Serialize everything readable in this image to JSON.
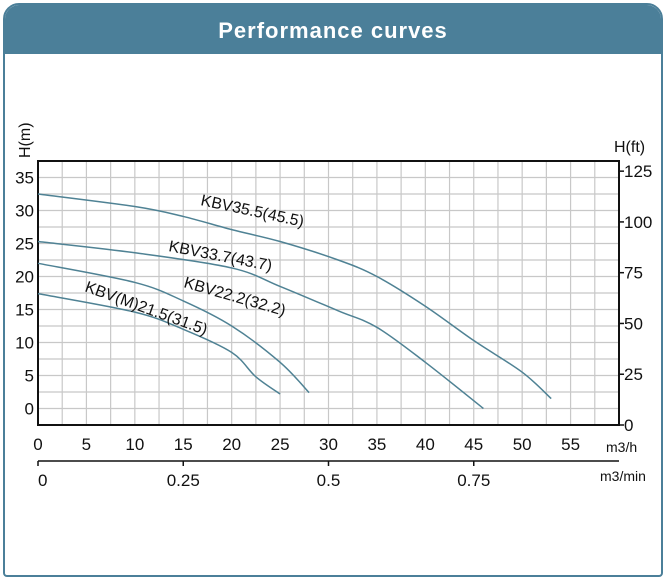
{
  "header": {
    "title": "Performance curves"
  },
  "colors": {
    "header": "#4b7f99",
    "curve": "#4f8294",
    "grid": "#c8c8c8"
  },
  "chart_data": {
    "type": "line",
    "title": "Performance curves",
    "ylabel": "H(m)",
    "ylabel_right": "H(ft)",
    "xlabel": "m3/h",
    "xlabel_secondary": "m3/min",
    "xlim": [
      0,
      60
    ],
    "ylim": [
      -2.5,
      37.5
    ],
    "ylim_right": [
      0,
      130
    ],
    "grid": true,
    "x_ticks": [
      0,
      5,
      10,
      15,
      20,
      25,
      30,
      35,
      40,
      45,
      50,
      55
    ],
    "y_ticks": [
      0,
      5,
      10,
      15,
      20,
      25,
      30,
      35
    ],
    "y_right_ticks": [
      0,
      25,
      50,
      75,
      100,
      125
    ],
    "x_secondary_ticks": [
      {
        "label": "0",
        "q": 0
      },
      {
        "label": "0.25",
        "q": 15
      },
      {
        "label": "0.5",
        "q": 30
      },
      {
        "label": "0.75",
        "q": 45
      }
    ],
    "series": [
      {
        "name": "KBV35.5(45.5)",
        "x": [
          0,
          10,
          15,
          20,
          25,
          31,
          35,
          40,
          45,
          50,
          53
        ],
        "y": [
          32.5,
          30.6,
          29.1,
          27.1,
          25.3,
          22.5,
          20,
          15.5,
          10.3,
          5.5,
          1.5
        ]
      },
      {
        "name": "KBV33.7(43.7)",
        "x": [
          0,
          10,
          20,
          25,
          31,
          35,
          40,
          46
        ],
        "y": [
          25.3,
          23.6,
          21.3,
          18.5,
          14.8,
          12.3,
          7.0,
          0
        ]
      },
      {
        "name": "KBV22.2(32.2)",
        "x": [
          0,
          10,
          15,
          20,
          25,
          28
        ],
        "y": [
          22.0,
          19.1,
          16.3,
          12.5,
          7.0,
          2.4
        ]
      },
      {
        "name": "KBV(M)21.5(31.5)",
        "x": [
          0,
          10,
          15,
          20,
          22.5,
          25
        ],
        "y": [
          17.4,
          14.6,
          12.0,
          8.5,
          4.8,
          2.2
        ]
      }
    ]
  }
}
